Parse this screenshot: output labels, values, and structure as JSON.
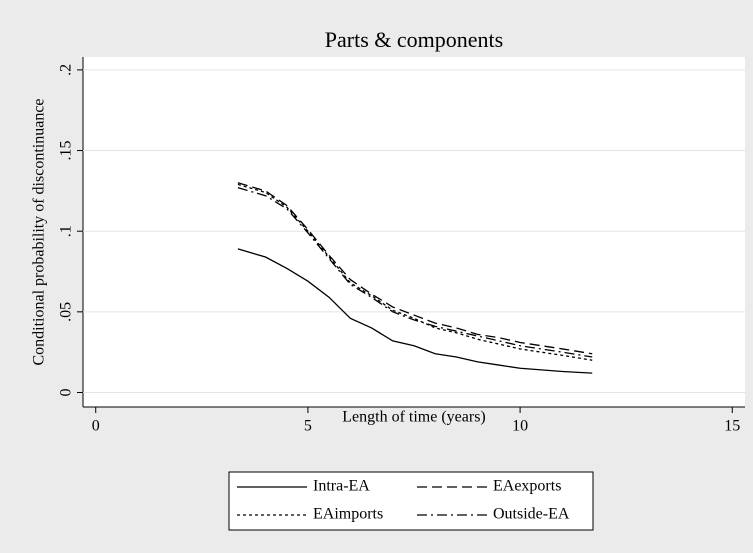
{
  "chart_data": {
    "type": "line",
    "title": "Parts & components",
    "xlabel": "Length of time (years)",
    "ylabel": "Conditional probability of discontinuance",
    "x": [
      3.35,
      4,
      4.5,
      5,
      5.5,
      6,
      6.5,
      7,
      7.5,
      8,
      8.5,
      9,
      9.5,
      10,
      10.5,
      11,
      11.7
    ],
    "series": [
      {
        "name": "Intra-EA",
        "color": "#000000",
        "dash": "solid",
        "values": [
          0.089,
          0.084,
          0.077,
          0.069,
          0.059,
          0.046,
          0.04,
          0.032,
          0.029,
          0.024,
          0.022,
          0.019,
          0.017,
          0.015,
          0.014,
          0.013,
          0.012
        ]
      },
      {
        "name": "EAexports",
        "color": "#000000",
        "dash": "dashed",
        "values": [
          0.13,
          0.125,
          0.116,
          0.101,
          0.085,
          0.07,
          0.061,
          0.053,
          0.048,
          0.043,
          0.04,
          0.036,
          0.034,
          0.031,
          0.029,
          0.027,
          0.024
        ]
      },
      {
        "name": "EAimports",
        "color": "#000000",
        "dash": "dotted",
        "values": [
          0.129,
          0.124,
          0.115,
          0.1,
          0.084,
          0.068,
          0.06,
          0.051,
          0.046,
          0.04,
          0.037,
          0.033,
          0.03,
          0.027,
          0.025,
          0.023,
          0.02
        ]
      },
      {
        "name": "Outside-EA",
        "color": "#000000",
        "dash": "dashdot",
        "values": [
          0.127,
          0.122,
          0.114,
          0.099,
          0.083,
          0.067,
          0.059,
          0.05,
          0.045,
          0.041,
          0.038,
          0.035,
          0.032,
          0.029,
          0.027,
          0.025,
          0.022
        ]
      }
    ],
    "xlim": [
      -0.3,
      15.3
    ],
    "xticks": [
      0,
      5,
      10,
      15
    ],
    "ylim": [
      -0.009,
      0.208
    ],
    "yticks": [
      0,
      {
        "value": 0.05,
        "label": ".05"
      },
      {
        "value": 0.1,
        "label": ".1"
      },
      {
        "value": 0.15,
        "label": ".15"
      },
      {
        "value": 0.2,
        "label": ".2"
      }
    ],
    "grid": true,
    "legend": "bottom"
  }
}
